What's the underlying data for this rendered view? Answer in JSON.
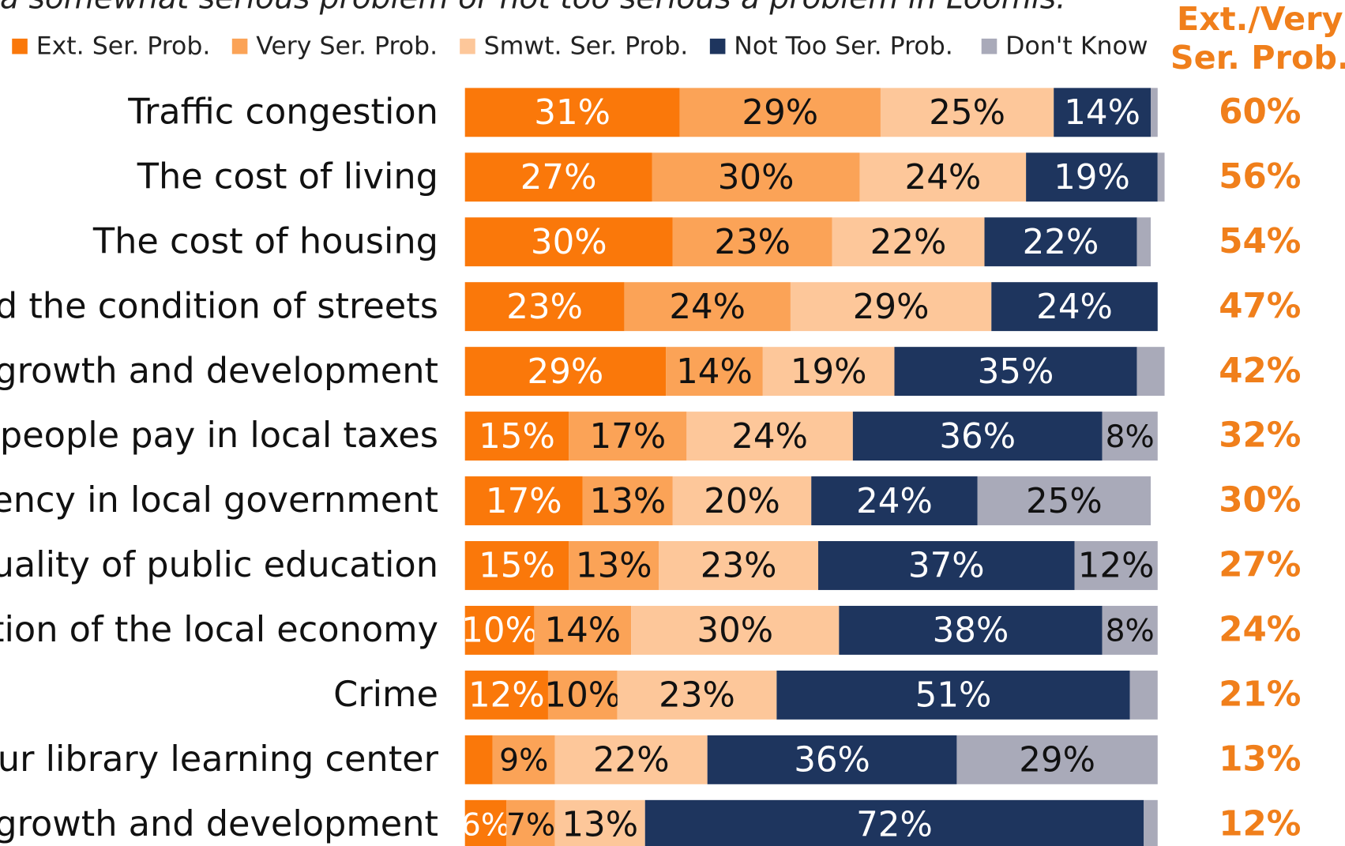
{
  "chart_data": {
    "type": "stacked_hbar",
    "subtitle": "a somewhat serious problem or not too serious a problem in Loomis.",
    "categories": [
      "Traffic congestion",
      "The cost of living",
      "The cost of housing",
      "nd the condition of streets",
      "growth and development",
      "t people pay in local taxes",
      "ciency in local government",
      "quality of public education",
      "ition of the local economy",
      "Crime",
      "our library learning center",
      "growth and development"
    ],
    "xlim": [
      0,
      100
    ],
    "series": [
      {
        "name": "Ext. Ser. Prob.",
        "color": "#fa780a",
        "values": [
          31,
          27,
          30,
          23,
          29,
          15,
          17,
          15,
          10,
          12,
          4,
          6
        ],
        "value_labels": [
          "31%",
          "27%",
          "30%",
          "23%",
          "29%",
          "15%",
          "17%",
          "15%",
          "10%",
          "12%",
          null,
          "6%"
        ]
      },
      {
        "name": "Very Ser. Prob.",
        "color": "#fba357",
        "values": [
          29,
          30,
          23,
          24,
          14,
          17,
          13,
          13,
          14,
          10,
          9,
          7
        ],
        "value_labels": [
          "29%",
          "30%",
          "23%",
          "24%",
          "14%",
          "17%",
          "13%",
          "13%",
          "14%",
          "10%",
          "9%",
          "7%"
        ]
      },
      {
        "name": "Smwt. Ser. Prob.",
        "color": "#fdc79a",
        "values": [
          25,
          24,
          22,
          29,
          19,
          24,
          20,
          23,
          30,
          23,
          22,
          13
        ],
        "value_labels": [
          "25%",
          "24%",
          "22%",
          "29%",
          "19%",
          "24%",
          "20%",
          "23%",
          "30%",
          "23%",
          "22%",
          "13%"
        ]
      },
      {
        "name": "Not Too Ser. Prob.",
        "color": "#1e355e",
        "values": [
          14,
          19,
          22,
          24,
          35,
          36,
          24,
          37,
          38,
          51,
          36,
          72
        ],
        "value_labels": [
          "14%",
          "19%",
          "22%",
          "24%",
          "35%",
          "36%",
          "24%",
          "37%",
          "38%",
          "51%",
          "36%",
          "72%"
        ]
      },
      {
        "name": "Don't Know",
        "color": "#a9aab9",
        "values": [
          1,
          1,
          2,
          0,
          4,
          8,
          25,
          12,
          8,
          4,
          29,
          2
        ],
        "value_labels": [
          null,
          null,
          null,
          null,
          null,
          "8%",
          "25%",
          "12%",
          "8%",
          null,
          "29%",
          null
        ]
      }
    ],
    "summary": {
      "title": [
        "Ext./Very",
        "Ser. Prob."
      ],
      "color": "#f07f1b",
      "values": [
        60,
        56,
        54,
        47,
        42,
        32,
        30,
        27,
        24,
        21,
        13,
        12
      ],
      "value_labels": [
        "60%",
        "56%",
        "54%",
        "47%",
        "42%",
        "32%",
        "30%",
        "27%",
        "24%",
        "21%",
        "13%",
        "12%"
      ]
    }
  }
}
